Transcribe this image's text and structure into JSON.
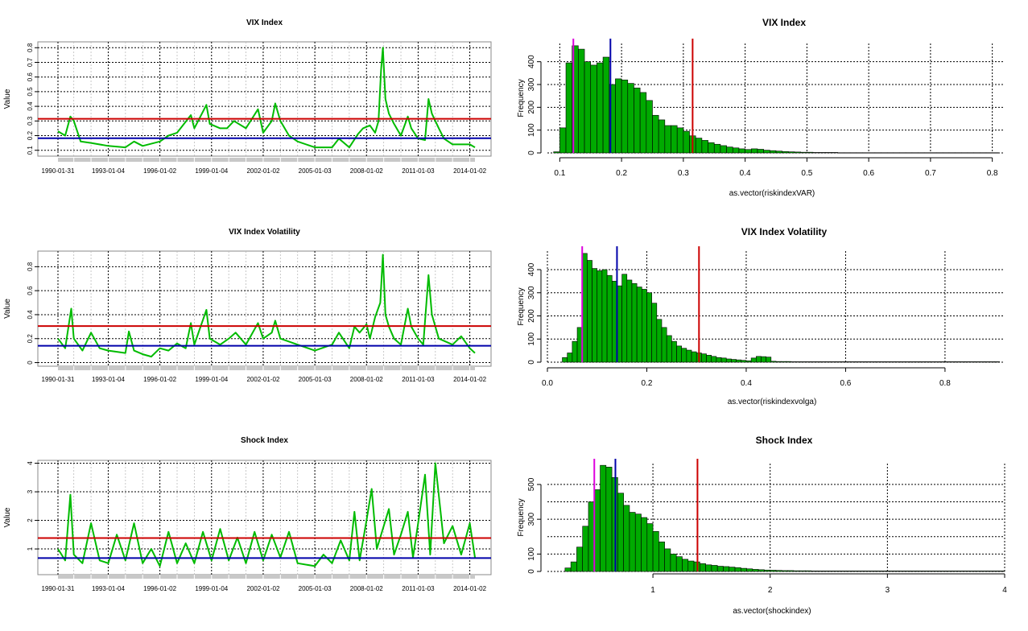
{
  "chart_data": [
    {
      "type": "line",
      "title": "VIX Index",
      "ylabel": "Value",
      "xlabel": "",
      "x_ticks": [
        "1990-01-31",
        "1993-01-04",
        "1996-01-02",
        "1999-01-04",
        "2002-01-02",
        "2005-01-03",
        "2008-01-02",
        "2011-01-03",
        "2014-01-02"
      ],
      "ylim": [
        0.06,
        0.84
      ],
      "y_ticks": [
        0.1,
        0.2,
        0.3,
        0.4,
        0.5,
        0.6,
        0.7,
        0.8
      ],
      "grid": true,
      "series": [
        {
          "color": "#00bb00",
          "x": [
            1990.08,
            1990.5,
            1990.8,
            1991.0,
            1991.4,
            1992.0,
            1993.0,
            1994.0,
            1994.5,
            1995.0,
            1996.0,
            1996.5,
            1997.0,
            1997.8,
            1998.0,
            1998.7,
            1998.9,
            1999.5,
            1999.9,
            2000.3,
            2001.0,
            2001.7,
            2002.0,
            2002.5,
            2002.7,
            2003.0,
            2003.5,
            2004.0,
            2005.0,
            2006.0,
            2006.4,
            2007.0,
            2007.5,
            2007.8,
            2008.2,
            2008.5,
            2008.7,
            2008.85,
            2008.95,
            2009.1,
            2009.3,
            2009.6,
            2010.0,
            2010.4,
            2010.6,
            2011.0,
            2011.4,
            2011.6,
            2011.8,
            2012.2,
            2012.5,
            2013.0,
            2014.0,
            2014.3
          ],
          "values": [
            0.23,
            0.2,
            0.33,
            0.3,
            0.16,
            0.15,
            0.13,
            0.12,
            0.16,
            0.13,
            0.16,
            0.2,
            0.22,
            0.34,
            0.25,
            0.41,
            0.28,
            0.25,
            0.25,
            0.3,
            0.25,
            0.38,
            0.22,
            0.3,
            0.42,
            0.3,
            0.2,
            0.16,
            0.12,
            0.12,
            0.18,
            0.12,
            0.21,
            0.25,
            0.27,
            0.22,
            0.3,
            0.65,
            0.8,
            0.45,
            0.35,
            0.28,
            0.2,
            0.33,
            0.25,
            0.18,
            0.17,
            0.45,
            0.35,
            0.25,
            0.18,
            0.14,
            0.14,
            0.12
          ]
        }
      ],
      "hlines": [
        {
          "y": 0.315,
          "color": "#cc0000"
        },
        {
          "y": 0.182,
          "color": "#0000aa"
        }
      ]
    },
    {
      "type": "bar",
      "title": "VIX Index",
      "xlabel": "as.vector(riskindexVAR)",
      "ylabel": "Frequency",
      "x_ticks": [
        0.1,
        0.2,
        0.3,
        0.4,
        0.5,
        0.6,
        0.7,
        0.8
      ],
      "y_ticks": [
        0,
        100,
        200,
        300,
        400
      ],
      "xlim": [
        0.08,
        0.82
      ],
      "ylim": [
        0,
        480
      ],
      "grid": true,
      "bin_start": 0.09,
      "bin_width": 0.01,
      "values": [
        5,
        110,
        395,
        470,
        455,
        400,
        385,
        395,
        420,
        300,
        325,
        320,
        305,
        285,
        265,
        230,
        165,
        145,
        120,
        120,
        110,
        95,
        75,
        65,
        55,
        45,
        38,
        32,
        26,
        22,
        18,
        15,
        18,
        16,
        12,
        10,
        8,
        6,
        5,
        4,
        3,
        3,
        2,
        2,
        2,
        2,
        1,
        1,
        1,
        1,
        1,
        1,
        1,
        1,
        1,
        1,
        1,
        1,
        1,
        1,
        1,
        1,
        1,
        1,
        1,
        1,
        1,
        1,
        1,
        1,
        1,
        1
      ],
      "vlines": [
        {
          "x": 0.122,
          "color": "#dd00dd"
        },
        {
          "x": 0.182,
          "color": "#0000aa"
        },
        {
          "x": 0.315,
          "color": "#cc0000"
        }
      ]
    },
    {
      "type": "line",
      "title": "VIX Index Volatility",
      "ylabel": "Value",
      "xlabel": "",
      "x_ticks": [
        "1990-01-31",
        "1993-01-04",
        "1996-01-02",
        "1999-01-04",
        "2002-01-02",
        "2005-01-03",
        "2008-01-02",
        "2011-01-03",
        "2014-01-02"
      ],
      "ylim": [
        -0.03,
        0.93
      ],
      "y_ticks": [
        0.0,
        0.2,
        0.4,
        0.6,
        0.8
      ],
      "grid": true,
      "series": [
        {
          "color": "#00bb00",
          "x": [
            1990.08,
            1990.5,
            1990.85,
            1991.0,
            1991.5,
            1992.0,
            1992.5,
            1993.0,
            1994.0,
            1994.2,
            1994.5,
            1995.0,
            1995.5,
            1996.0,
            1996.5,
            1997.0,
            1997.5,
            1997.8,
            1998.0,
            1998.7,
            1998.9,
            1999.5,
            2000.0,
            2000.4,
            2001.0,
            2001.7,
            2002.0,
            2002.5,
            2002.7,
            2003.0,
            2004.0,
            2005.0,
            2006.0,
            2006.4,
            2007.0,
            2007.3,
            2007.6,
            2008.0,
            2008.2,
            2008.5,
            2008.8,
            2008.95,
            2009.1,
            2009.3,
            2009.6,
            2010.0,
            2010.4,
            2010.6,
            2011.0,
            2011.3,
            2011.6,
            2011.8,
            2012.2,
            2013.0,
            2013.5,
            2014.0,
            2014.3
          ],
          "values": [
            0.2,
            0.12,
            0.45,
            0.2,
            0.1,
            0.25,
            0.12,
            0.1,
            0.08,
            0.26,
            0.1,
            0.07,
            0.05,
            0.12,
            0.1,
            0.16,
            0.12,
            0.33,
            0.15,
            0.44,
            0.2,
            0.15,
            0.2,
            0.25,
            0.15,
            0.33,
            0.2,
            0.25,
            0.35,
            0.2,
            0.15,
            0.1,
            0.15,
            0.25,
            0.12,
            0.3,
            0.25,
            0.32,
            0.2,
            0.38,
            0.5,
            0.9,
            0.4,
            0.3,
            0.2,
            0.15,
            0.45,
            0.3,
            0.2,
            0.15,
            0.73,
            0.4,
            0.2,
            0.15,
            0.22,
            0.12,
            0.08
          ]
        }
      ],
      "hlines": [
        {
          "y": 0.305,
          "color": "#cc0000"
        },
        {
          "y": 0.14,
          "color": "#0000aa"
        }
      ]
    },
    {
      "type": "bar",
      "title": "VIX Index Volatility",
      "xlabel": "as.vector(riskindexvolga)",
      "ylabel": "Frequency",
      "x_ticks": [
        0.0,
        0.2,
        0.4,
        0.6,
        0.8
      ],
      "y_ticks": [
        0,
        100,
        200,
        300,
        400
      ],
      "xlim": [
        0.0,
        0.92
      ],
      "ylim": [
        0,
        480
      ],
      "grid": true,
      "bin_start": 0.03,
      "bin_width": 0.01,
      "values": [
        20,
        40,
        90,
        150,
        470,
        440,
        405,
        395,
        400,
        375,
        350,
        330,
        380,
        355,
        340,
        325,
        315,
        300,
        255,
        185,
        150,
        115,
        90,
        70,
        60,
        52,
        45,
        40,
        36,
        30,
        25,
        20,
        18,
        14,
        12,
        10,
        8,
        6,
        18,
        25,
        24,
        22,
        4,
        3,
        3,
        3,
        2,
        2,
        2,
        2,
        2,
        2,
        2,
        2,
        2,
        2,
        2,
        2,
        2,
        2,
        2,
        2,
        2,
        2,
        2,
        2,
        2,
        2,
        2,
        2,
        2,
        2,
        2,
        2,
        2,
        2,
        2,
        2,
        2,
        2,
        2,
        2,
        2,
        2,
        2,
        2,
        2,
        2
      ],
      "vlines": [
        {
          "x": 0.07,
          "color": "#dd00dd"
        },
        {
          "x": 0.14,
          "color": "#0000aa"
        },
        {
          "x": 0.305,
          "color": "#cc0000"
        }
      ]
    },
    {
      "type": "line",
      "title": "Shock Index",
      "ylabel": "Value",
      "xlabel": "",
      "x_ticks": [
        "1990-01-31",
        "1993-01-04",
        "1996-01-02",
        "1999-01-04",
        "2002-01-02",
        "2005-01-03",
        "2008-01-02",
        "2011-01-03",
        "2014-01-02"
      ],
      "ylim": [
        0.1,
        4.1
      ],
      "y_ticks": [
        1,
        2,
        3,
        4
      ],
      "grid": true,
      "series": [
        {
          "color": "#00bb00",
          "x": [
            1990.08,
            1990.5,
            1990.8,
            1991.0,
            1991.5,
            1992.0,
            1992.5,
            1993.0,
            1993.5,
            1994.0,
            1994.5,
            1995.0,
            1995.5,
            1996.0,
            1996.5,
            1997.0,
            1997.5,
            1998.0,
            1998.5,
            1999.0,
            1999.5,
            2000.0,
            2000.5,
            2001.0,
            2001.5,
            2002.0,
            2002.5,
            2003.0,
            2003.5,
            2004.0,
            2005.0,
            2005.5,
            2006.0,
            2006.5,
            2007.0,
            2007.3,
            2007.6,
            2008.0,
            2008.3,
            2008.6,
            2008.9,
            2009.3,
            2009.6,
            2010.0,
            2010.4,
            2010.7,
            2011.0,
            2011.4,
            2011.7,
            2012.0,
            2012.5,
            2013.0,
            2013.5,
            2014.0,
            2014.3
          ],
          "values": [
            1.0,
            0.6,
            2.9,
            0.8,
            0.5,
            1.9,
            0.6,
            0.5,
            1.5,
            0.6,
            1.9,
            0.5,
            1.0,
            0.4,
            1.6,
            0.5,
            1.2,
            0.5,
            1.6,
            0.6,
            1.7,
            0.6,
            1.4,
            0.5,
            1.6,
            0.6,
            1.5,
            0.7,
            1.6,
            0.5,
            0.4,
            0.8,
            0.5,
            1.3,
            0.6,
            2.3,
            0.6,
            2.0,
            3.1,
            1.0,
            1.6,
            2.4,
            0.8,
            1.5,
            2.3,
            0.7,
            1.9,
            3.6,
            0.8,
            4.0,
            1.2,
            1.8,
            0.8,
            1.9,
            0.7
          ]
        }
      ],
      "hlines": [
        {
          "y": 1.38,
          "color": "#cc0000"
        },
        {
          "y": 0.68,
          "color": "#0000aa"
        }
      ]
    },
    {
      "type": "bar",
      "title": "Shock Index",
      "xlabel": "as.vector(shockindex)",
      "ylabel": "Frequency",
      "x_ticks": [
        1,
        2,
        3,
        4
      ],
      "y_ticks": [
        0,
        100,
        300,
        500
      ],
      "xlim": [
        0.1,
        4.0
      ],
      "ylim": [
        0,
        620
      ],
      "grid": true,
      "bin_start": 0.25,
      "bin_width": 0.05,
      "values": [
        20,
        55,
        140,
        260,
        400,
        470,
        610,
        600,
        540,
        450,
        380,
        340,
        330,
        310,
        275,
        230,
        170,
        130,
        100,
        85,
        70,
        60,
        55,
        45,
        38,
        35,
        30,
        28,
        25,
        22,
        18,
        15,
        12,
        10,
        8,
        7,
        6,
        5,
        5,
        4,
        4,
        4,
        3,
        3,
        3,
        3,
        3,
        3,
        3,
        3,
        3,
        3,
        3,
        3,
        3,
        3,
        3,
        3,
        3,
        3,
        3,
        3,
        3,
        3,
        3,
        3,
        3,
        3,
        3,
        3,
        3,
        3,
        3,
        3,
        3
      ],
      "vlines": [
        {
          "x": 0.5,
          "color": "#dd00dd"
        },
        {
          "x": 0.68,
          "color": "#0000aa"
        },
        {
          "x": 1.38,
          "color": "#cc0000"
        }
      ]
    }
  ]
}
